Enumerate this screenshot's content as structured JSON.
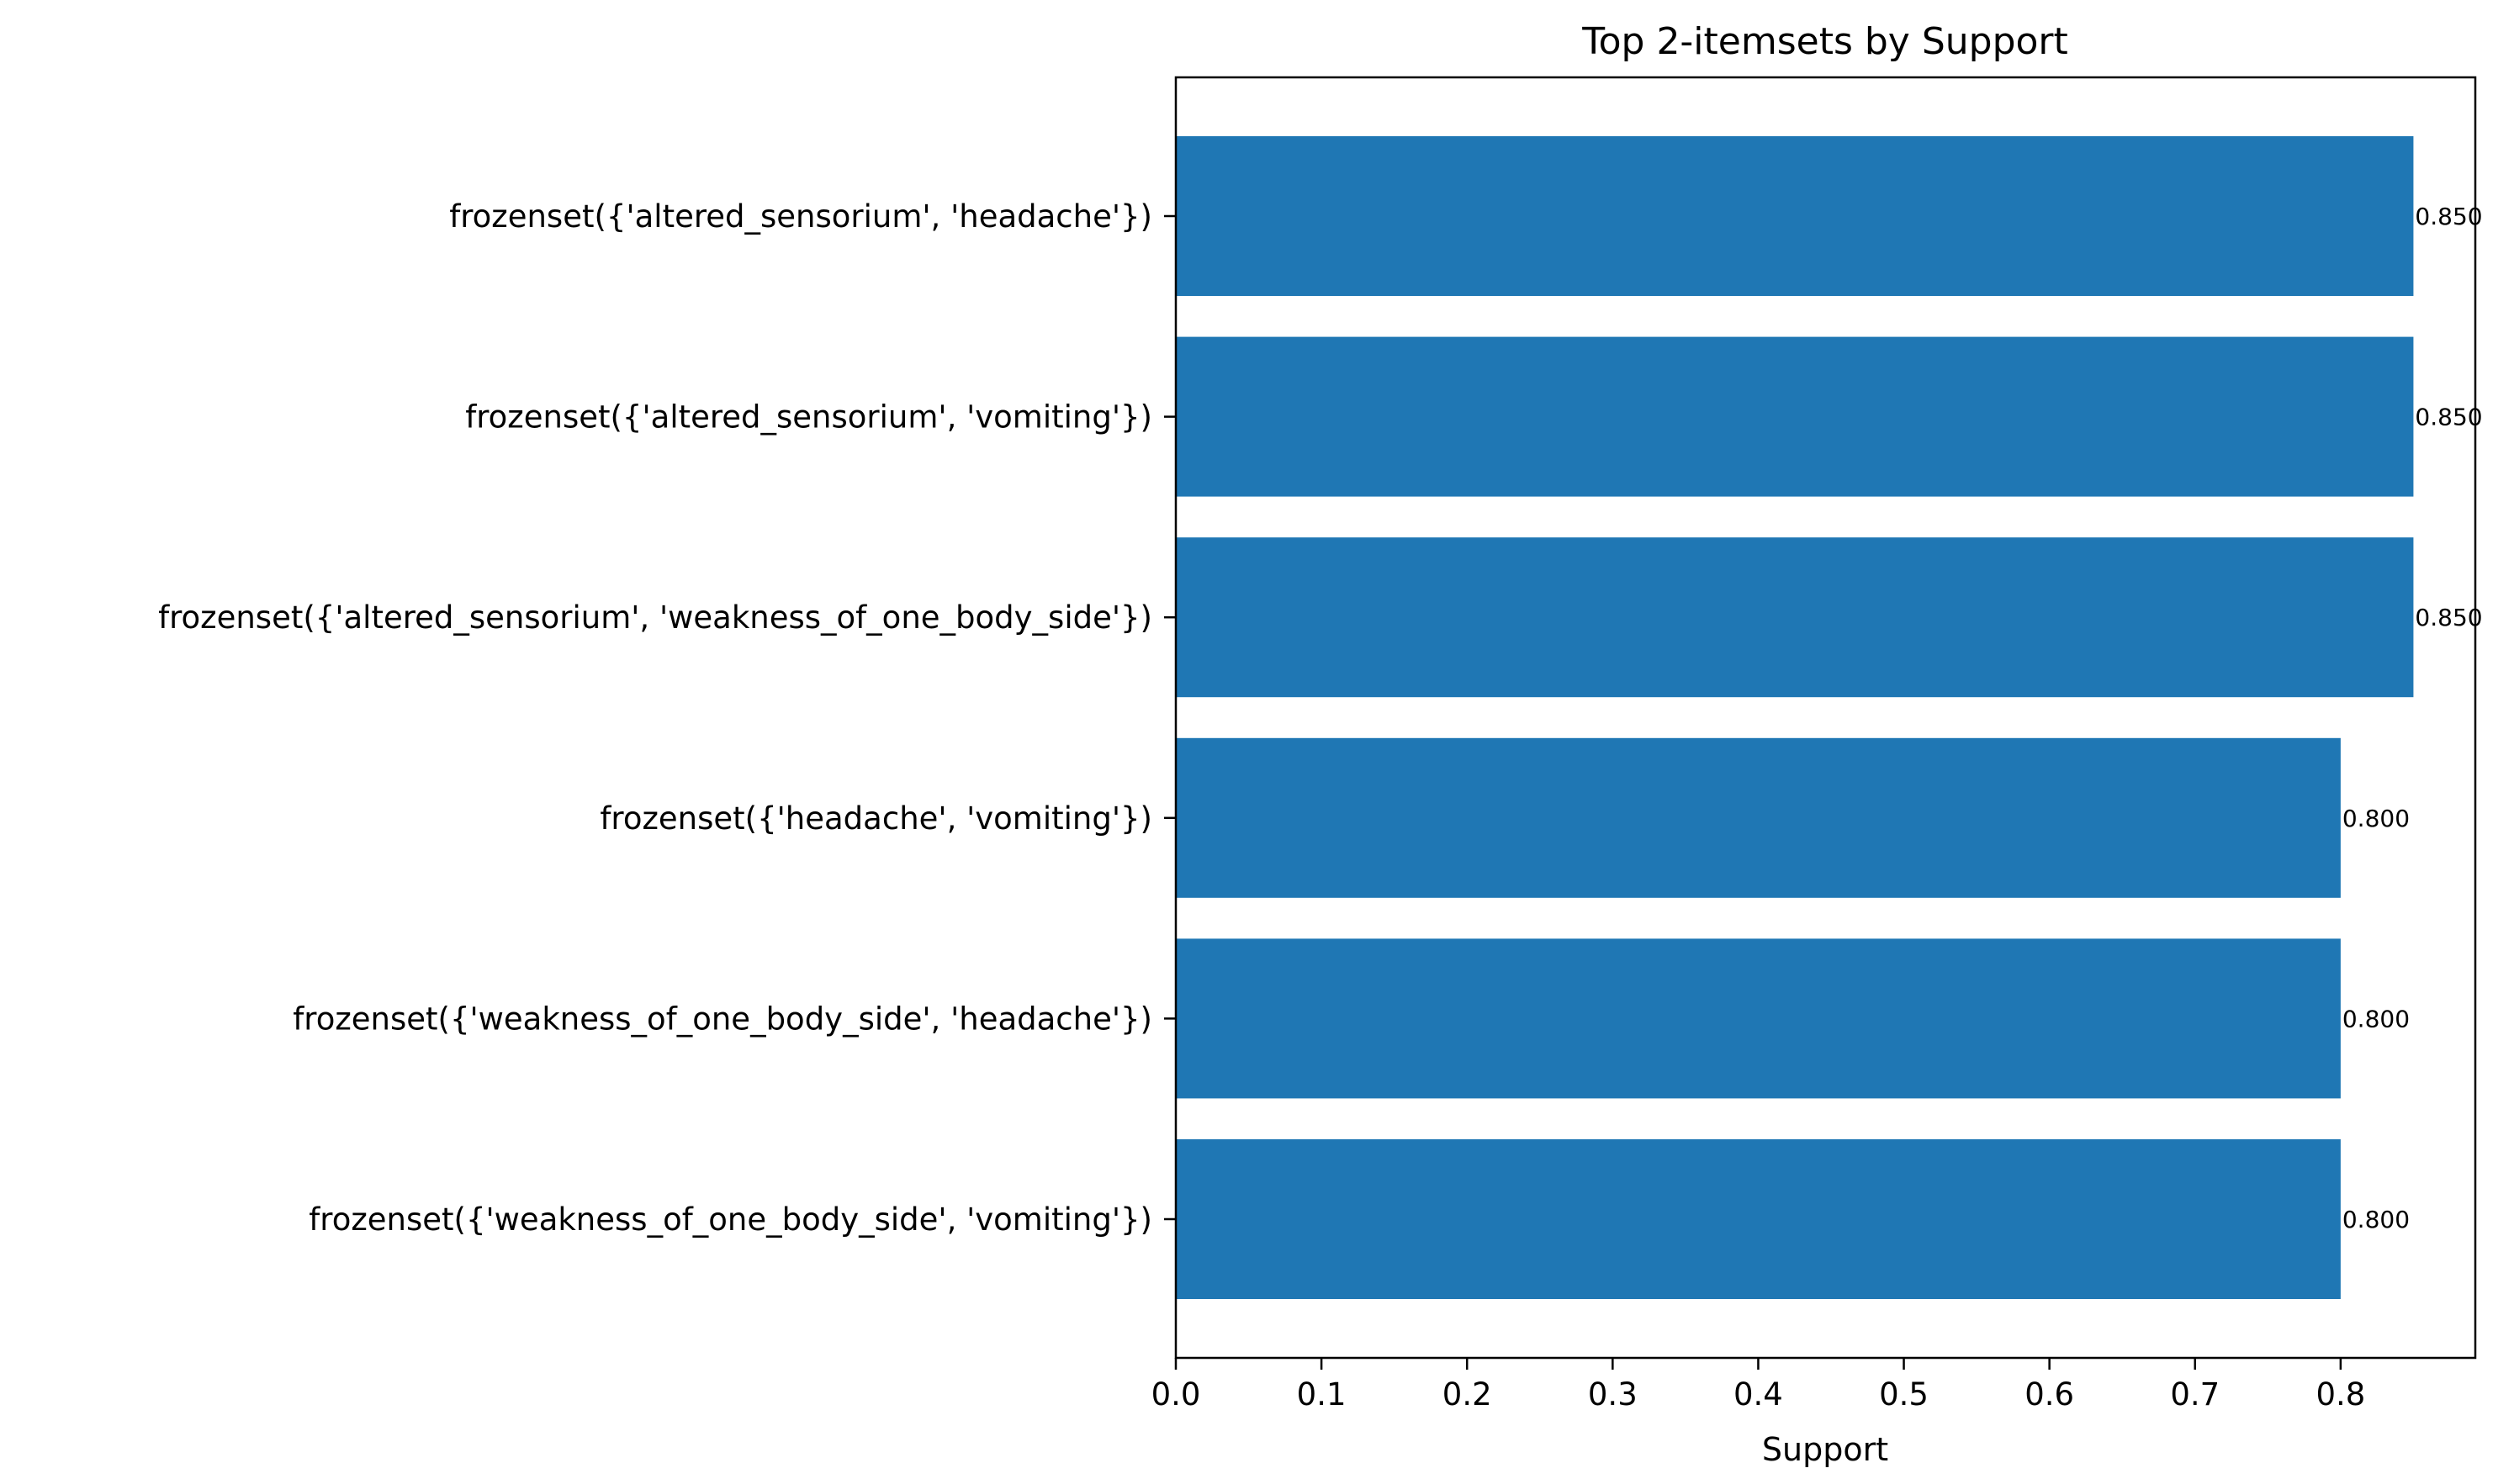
{
  "chart_data": {
    "type": "bar",
    "orientation": "horizontal",
    "title": "Top 2-itemsets by Support",
    "xlabel": "Support",
    "ylabel": "",
    "categories": [
      "frozenset({'altered_sensorium', 'headache'})",
      "frozenset({'altered_sensorium', 'vomiting'})",
      "frozenset({'altered_sensorium', 'weakness_of_one_body_side'})",
      "frozenset({'headache', 'vomiting'})",
      "frozenset({'weakness_of_one_body_side', 'headache'})",
      "frozenset({'weakness_of_one_body_side', 'vomiting'})"
    ],
    "values": [
      0.85,
      0.85,
      0.85,
      0.8,
      0.8,
      0.8
    ],
    "value_labels": [
      "0.850",
      "0.850",
      "0.850",
      "0.800",
      "0.800",
      "0.800"
    ],
    "xlim": [
      0,
      0.8925
    ],
    "xticks": [
      0.0,
      0.1,
      0.2,
      0.3,
      0.4,
      0.5,
      0.6,
      0.7,
      0.8
    ],
    "xtick_labels": [
      "0.0",
      "0.1",
      "0.2",
      "0.3",
      "0.4",
      "0.5",
      "0.6",
      "0.7",
      "0.8"
    ],
    "bar_color": "#1f77b4",
    "grid": false,
    "legend": "none"
  }
}
